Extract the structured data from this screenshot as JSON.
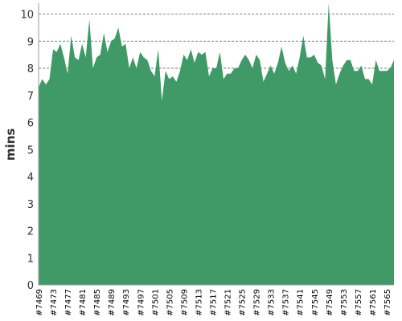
{
  "chart_data": {
    "type": "area",
    "ylabel": "mins",
    "xlabel": "",
    "ylim": [
      0,
      10.4
    ],
    "yticks": [
      0,
      1,
      2,
      3,
      4,
      5,
      6,
      7,
      8,
      9,
      10
    ],
    "grid": true,
    "legend": "none",
    "fill_color": "#3f9a67",
    "x_start": 7469,
    "x_end": 7567,
    "x_label_every": 4,
    "x_label_prefix": "#",
    "values": [
      7.3,
      7.6,
      7.4,
      7.6,
      8.7,
      8.6,
      8.9,
      8.4,
      7.8,
      9.2,
      8.4,
      8.3,
      8.9,
      8.4,
      9.8,
      8.0,
      8.4,
      8.5,
      9.3,
      8.6,
      9.0,
      9.1,
      9.5,
      8.8,
      8.9,
      8.0,
      8.4,
      8.0,
      8.6,
      8.4,
      8.3,
      7.9,
      7.7,
      8.7,
      6.8,
      7.9,
      7.6,
      7.7,
      7.5,
      7.9,
      8.5,
      8.3,
      8.7,
      8.2,
      8.6,
      8.5,
      8.6,
      7.7,
      8.0,
      8.0,
      8.6,
      7.6,
      7.8,
      7.8,
      8.0,
      8.0,
      8.3,
      8.5,
      8.3,
      8.0,
      8.5,
      8.3,
      7.5,
      7.8,
      8.1,
      7.8,
      8.2,
      8.8,
      8.2,
      7.9,
      8.1,
      7.8,
      8.4,
      9.2,
      8.4,
      8.4,
      8.5,
      8.2,
      8.1,
      7.6,
      10.4,
      8.3,
      7.4,
      7.8,
      8.1,
      8.3,
      8.3,
      7.9,
      7.9,
      8.1,
      7.6,
      7.6,
      7.4,
      8.3,
      7.9,
      7.9,
      7.9,
      8.0,
      8.3
    ]
  }
}
